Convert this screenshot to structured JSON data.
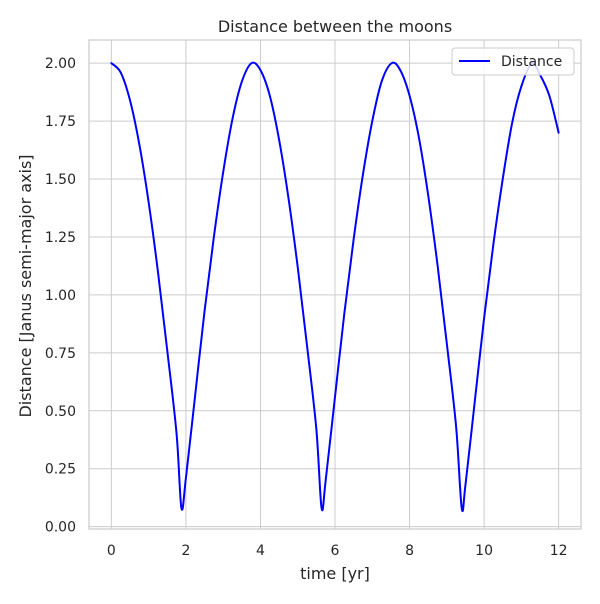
{
  "chart_data": {
    "type": "line",
    "title": "Distance between the moons",
    "xlabel": "time [yr]",
    "ylabel": "Distance [Janus semi-major axis]",
    "xlim": [
      -0.6,
      12.6
    ],
    "ylim": [
      -0.01,
      2.1
    ],
    "xticks": [
      0,
      2,
      4,
      6,
      8,
      10,
      12
    ],
    "yticks": [
      0.0,
      0.25,
      0.5,
      0.75,
      1.0,
      1.25,
      1.5,
      1.75,
      2.0
    ],
    "xtick_labels": [
      "0",
      "2",
      "4",
      "6",
      "8",
      "10",
      "12"
    ],
    "ytick_labels": [
      "0.00",
      "0.25",
      "0.50",
      "0.75",
      "1.00",
      "1.25",
      "1.50",
      "1.75",
      "2.00"
    ],
    "grid": true,
    "legend_position": "top-right",
    "series": [
      {
        "name": "Distance",
        "color": "#0000ff",
        "x": [
          0,
          0.25,
          0.5,
          0.75,
          1.0,
          1.25,
          1.5,
          1.75,
          1.88,
          2.0,
          2.25,
          2.5,
          2.75,
          3.0,
          3.25,
          3.5,
          3.76,
          4.0,
          4.25,
          4.5,
          4.75,
          5.0,
          5.25,
          5.5,
          5.64,
          5.75,
          6.0,
          6.25,
          6.5,
          6.75,
          7.0,
          7.25,
          7.52,
          7.75,
          8.0,
          8.25,
          8.5,
          8.75,
          9.0,
          9.25,
          9.4,
          9.5,
          9.75,
          10.0,
          10.25,
          10.5,
          10.75,
          11.0,
          11.28,
          11.5,
          11.75,
          12.0
        ],
        "values": [
          2.0,
          1.96,
          1.84,
          1.65,
          1.4,
          1.1,
          0.76,
          0.4,
          0.08,
          0.21,
          0.57,
          0.93,
          1.25,
          1.53,
          1.76,
          1.92,
          2.0,
          1.97,
          1.86,
          1.67,
          1.42,
          1.12,
          0.78,
          0.42,
          0.08,
          0.2,
          0.56,
          0.92,
          1.24,
          1.52,
          1.75,
          1.92,
          2.0,
          1.97,
          1.86,
          1.68,
          1.43,
          1.13,
          0.79,
          0.43,
          0.08,
          0.18,
          0.54,
          0.9,
          1.22,
          1.5,
          1.74,
          1.9,
          2.0,
          1.95,
          1.86,
          1.7
        ]
      }
    ]
  }
}
